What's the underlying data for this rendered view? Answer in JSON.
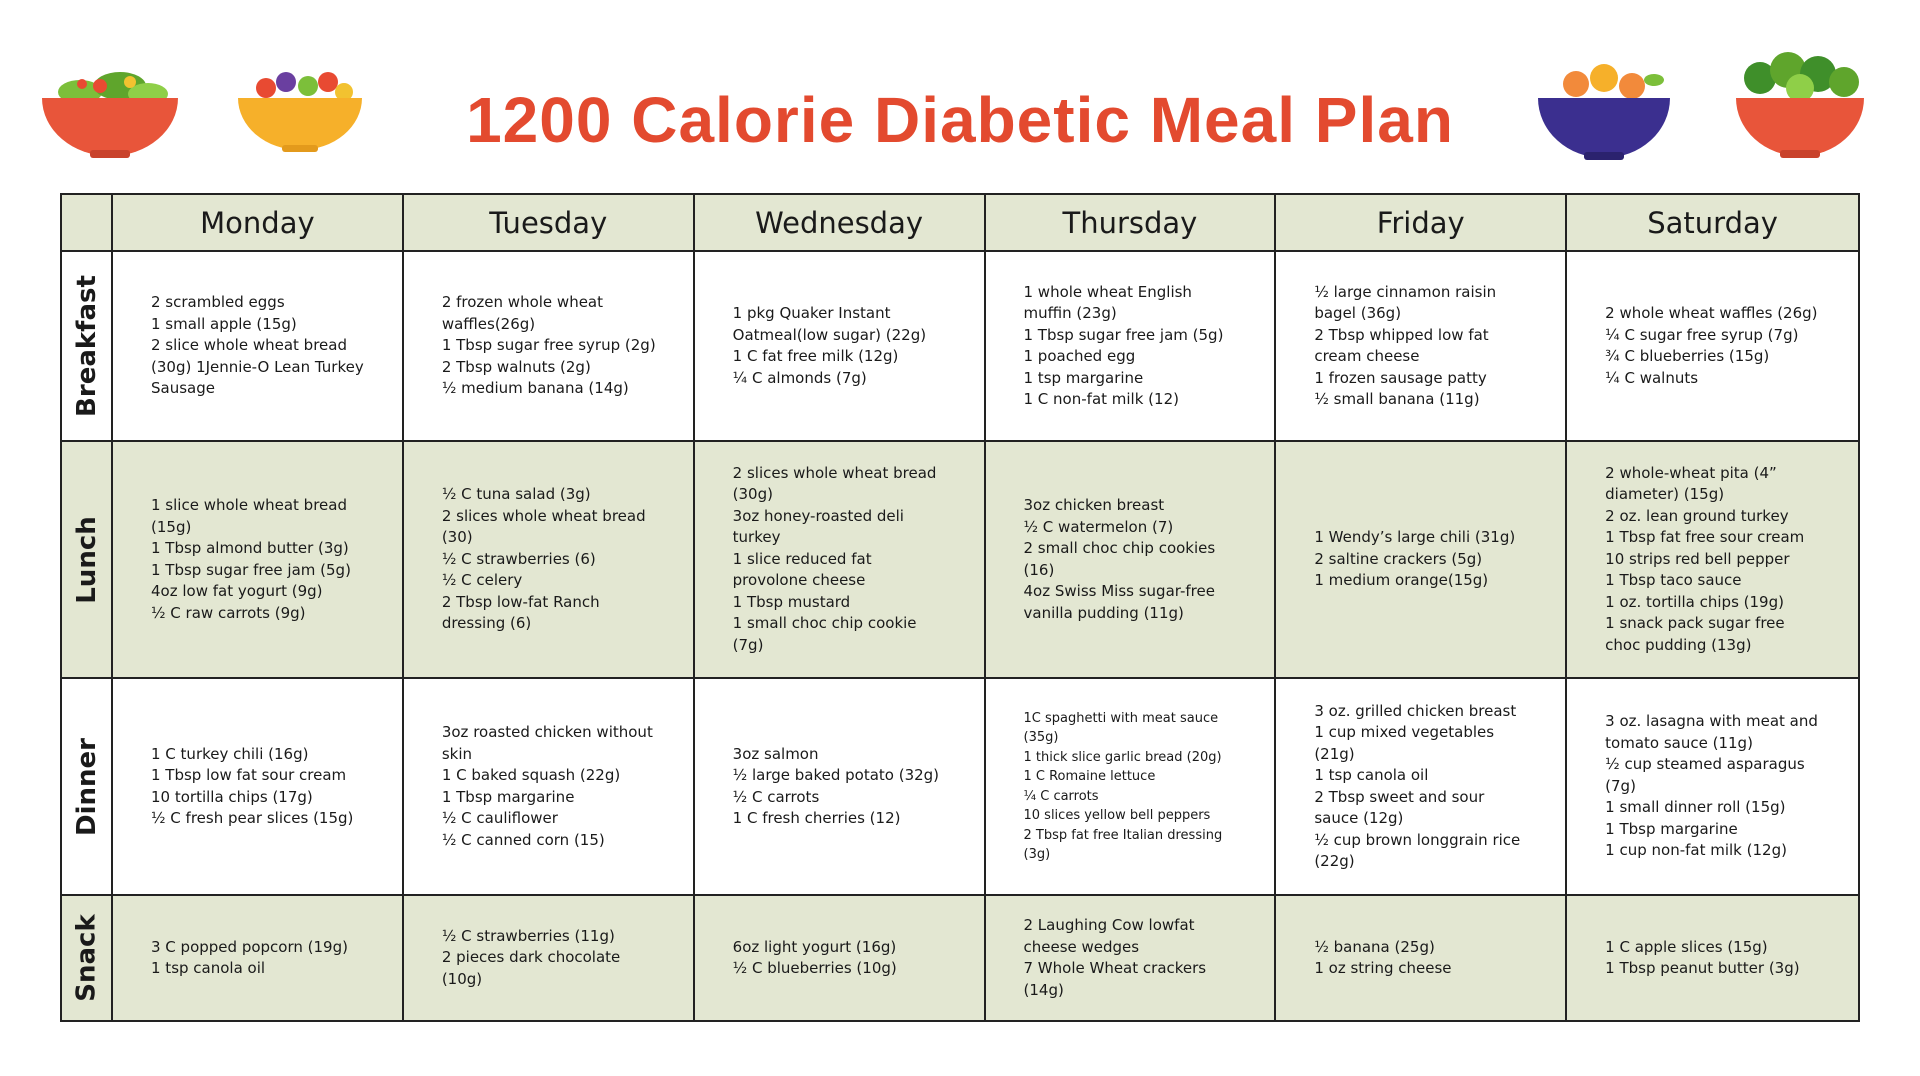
{
  "header": {
    "title": "1200 Calorie Diabetic Meal Plan"
  },
  "table": {
    "columns": [
      "Monday",
      "Tuesday",
      "Wednesday",
      "Thursday",
      "Friday",
      "Saturday"
    ],
    "rows": [
      {
        "label": "Breakfast",
        "cells": [
          [
            "2 scrambled eggs",
            "1 small apple (15g)",
            "2 slice whole wheat bread (30g) 1Jennie-O Lean Turkey Sausage"
          ],
          [
            "2 frozen whole wheat waffles(26g)",
            "1 Tbsp sugar free syrup (2g)",
            "2 Tbsp walnuts (2g)",
            "½ medium banana (14g)"
          ],
          [
            "1 pkg Quaker Instant Oatmeal(low sugar) (22g)",
            "1 C fat free milk (12g)",
            "¼ C almonds (7g)"
          ],
          [
            "1 whole wheat English muffin (23g)",
            "1 Tbsp sugar free jam (5g)",
            "1 poached egg",
            "1 tsp margarine",
            "1 C non-fat milk (12)"
          ],
          [
            "½ large cinnamon raisin bagel (36g)",
            "2 Tbsp whipped low fat cream cheese",
            "1 frozen sausage patty",
            "½ small banana (11g)"
          ],
          [
            "2 whole wheat waffles (26g)",
            "¼ C sugar free syrup (7g)",
            "¾ C blueberries (15g)",
            "¼ C walnuts"
          ]
        ]
      },
      {
        "label": "Lunch",
        "cells": [
          [
            "1 slice whole wheat bread (15g)",
            "1 Tbsp almond butter (3g)",
            "1 Tbsp sugar free jam (5g)",
            "4oz low fat yogurt (9g)",
            "½ C raw carrots (9g)"
          ],
          [
            "½ C tuna salad (3g)",
            "2 slices whole wheat bread (30)",
            "½ C strawberries (6)",
            "½ C celery",
            "2 Tbsp low-fat Ranch dressing (6)"
          ],
          [
            "2 slices whole wheat bread (30g)",
            "3oz honey-roasted deli turkey",
            "1 slice reduced fat provolone cheese",
            "1 Tbsp mustard",
            "1 small choc chip cookie (7g)"
          ],
          [
            "3oz chicken breast",
            "½ C watermelon (7)",
            "2 small choc chip cookies (16)",
            "4oz Swiss Miss sugar-free vanilla pudding (11g)"
          ],
          [
            "1 Wendy’s large chili (31g)",
            "2 saltine crackers (5g)",
            "1 medium orange(15g)"
          ],
          [
            "2 whole-wheat pita (4” diameter) (15g)",
            "2 oz. lean ground turkey",
            "1 Tbsp fat free sour cream",
            "10 strips red bell pepper",
            "1 Tbsp taco sauce",
            "1 oz. tortilla chips (19g)",
            "1 snack pack sugar free choc pudding (13g)"
          ]
        ]
      },
      {
        "label": "Dinner",
        "cells": [
          [
            "1 C turkey chili (16g)",
            "1 Tbsp low fat sour cream",
            "10 tortilla chips (17g)",
            "½ C fresh pear slices (15g)"
          ],
          [
            "3oz roasted chicken without skin",
            "1 C baked squash (22g)",
            "1 Tbsp margarine",
            "½ C cauliflower",
            "½ C canned corn (15)"
          ],
          [
            "3oz salmon",
            "½ large baked potato (32g)",
            "½ C carrots",
            "1 C fresh cherries (12)"
          ],
          [
            "1C spaghetti with meat sauce (35g)",
            "1 thick slice garlic bread (20g)",
            "1 C Romaine lettuce",
            "¼ C carrots",
            "10 slices yellow bell peppers",
            "2 Tbsp fat free Italian dressing (3g)"
          ],
          [
            "3 oz. grilled chicken breast",
            "1 cup mixed vegetables (21g)",
            "1 tsp canola oil",
            "2 Tbsp sweet and sour sauce (12g)",
            "½ cup brown longgrain rice (22g)"
          ],
          [
            "3 oz. lasagna with meat and tomato sauce (11g)",
            "½ cup steamed asparagus (7g)",
            "1 small dinner roll (15g)",
            "1 Tbsp margarine",
            "1 cup non-fat milk (12g)"
          ]
        ]
      },
      {
        "label": "Snack",
        "cells": [
          [
            "3 C popped popcorn (19g)",
            "1 tsp canola oil"
          ],
          [
            "½ C strawberries (11g)",
            "2 pieces dark chocolate (10g)"
          ],
          [
            "6oz light yogurt (16g)",
            "½ C blueberries (10g)"
          ],
          [
            "2 Laughing Cow lowfat cheese wedges",
            "7 Whole Wheat crackers (14g)"
          ],
          [
            "½ banana (25g)",
            "1 oz string cheese"
          ],
          [
            "1 C apple slices (15g)",
            "1 Tbsp peanut butter (3g)"
          ]
        ]
      }
    ]
  }
}
